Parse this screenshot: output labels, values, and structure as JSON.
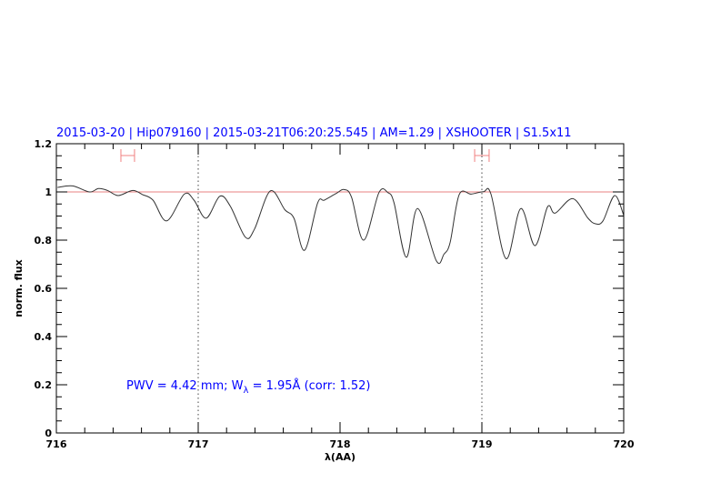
{
  "chart_data": {
    "type": "line",
    "title": "2015-03-20 | Hip079160 | 2015-03-21T06:20:25.545 | AM=1.29 | XSHOOTER | S1.5x11",
    "xlabel": "λ(AA)",
    "ylabel": "norm. flux",
    "xlim": [
      716,
      720
    ],
    "ylim": [
      0,
      1.2
    ],
    "x_ticks": [
      "716",
      "717",
      "718",
      "719",
      "720"
    ],
    "y_ticks": [
      "0",
      "0.2",
      "0.4",
      "0.6",
      "0.8",
      "1",
      "1.2"
    ],
    "annotation": {
      "prefix": "PWV  =  4.42  mm;  W",
      "subscript": "λ",
      "suffix": "  =  1.95Å  (corr:  1.52)"
    },
    "reference_line_y": 1.0,
    "vertical_dotted_lines_x": [
      717,
      719
    ],
    "error_bars": [
      {
        "x_low": 716.455,
        "x_high": 716.551,
        "y": 1.151
      },
      {
        "x_low": 718.949,
        "x_high": 719.051,
        "y": 1.151
      }
    ],
    "series": [
      {
        "x": [
          716.008,
          716.115,
          716.233,
          716.297,
          716.361,
          716.436,
          716.538,
          716.607,
          716.681,
          716.778,
          716.902,
          716.97,
          717.056,
          717.152,
          717.226,
          717.333,
          717.397,
          717.508,
          717.611,
          717.675,
          717.75,
          717.842,
          717.889,
          717.974,
          718.028,
          718.081,
          718.167,
          718.274,
          718.338,
          718.381,
          718.467,
          718.547,
          718.679,
          718.733,
          718.776,
          718.84,
          718.925,
          719.011,
          719.064,
          719.171,
          719.274,
          719.374,
          719.463,
          719.517,
          719.641,
          719.748,
          719.801,
          719.854,
          719.936,
          720.0
        ],
        "y": [
          1.019,
          1.025,
          1.0,
          1.014,
          1.006,
          0.985,
          1.006,
          0.989,
          0.966,
          0.88,
          0.991,
          0.966,
          0.891,
          0.982,
          0.941,
          0.812,
          0.846,
          1.004,
          0.926,
          0.891,
          0.758,
          0.954,
          0.966,
          0.994,
          1.01,
          0.978,
          0.8,
          0.997,
          0.997,
          0.954,
          0.729,
          0.931,
          0.714,
          0.742,
          0.79,
          0.989,
          0.991,
          1.001,
          0.991,
          0.723,
          0.931,
          0.777,
          0.938,
          0.912,
          0.972,
          0.891,
          0.868,
          0.88,
          0.985,
          0.903
        ]
      }
    ],
    "colors": {
      "title": "#0000ff",
      "annotation": "#0000ff",
      "curve": "#333333",
      "reference_line": "#e88080",
      "error_bars": "#f08080",
      "axes": "#000000"
    },
    "grid": false
  }
}
